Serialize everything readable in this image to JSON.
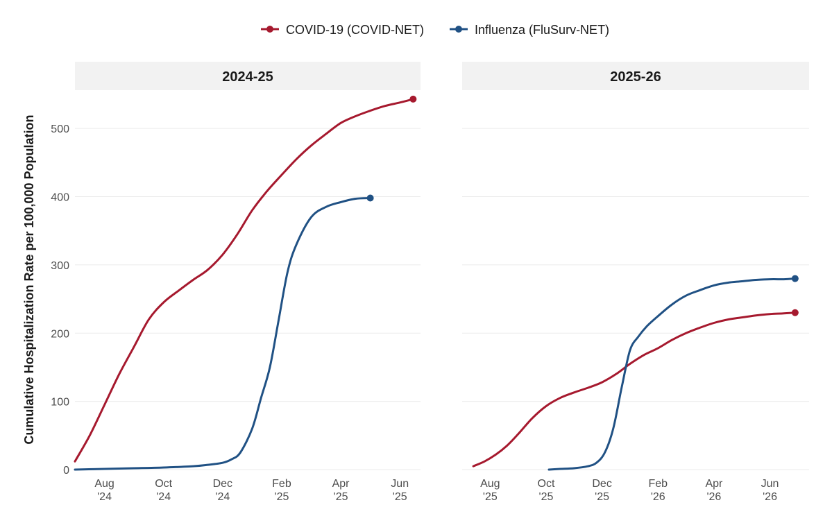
{
  "chart_data": {
    "type": "line",
    "ylabel": "Cumulative Hospitalization Rate per 100,000 Population",
    "yticks": [
      0,
      100,
      200,
      300,
      400,
      500
    ],
    "ylim": [
      0,
      550
    ],
    "legend_position": "top",
    "grid": true,
    "series_legend": [
      {
        "name": "COVID-19 (COVID-NET)",
        "color": "#a6192e"
      },
      {
        "name": "Influenza (FluSurv-NET)",
        "color": "#205184"
      }
    ],
    "panels": [
      {
        "title": "2024-25",
        "xlim": [
          0,
          11.7
        ],
        "x_ticks": [
          {
            "x": 1,
            "l1": "Aug",
            "l2": "'24"
          },
          {
            "x": 3,
            "l1": "Oct",
            "l2": "'24"
          },
          {
            "x": 5,
            "l1": "Dec",
            "l2": "'24"
          },
          {
            "x": 7,
            "l1": "Feb",
            "l2": "'25"
          },
          {
            "x": 9,
            "l1": "Apr",
            "l2": "'25"
          },
          {
            "x": 11,
            "l1": "Jun",
            "l2": "'25"
          }
        ],
        "series": [
          {
            "name": "COVID-19 (COVID-NET)",
            "color": "#a6192e",
            "x": [
              0,
              0.5,
              1.0,
              1.5,
              2.0,
              2.5,
              3.0,
              3.5,
              4.0,
              4.5,
              5.0,
              5.5,
              6.0,
              6.5,
              7.0,
              7.5,
              8.0,
              8.5,
              9.0,
              9.5,
              10.0,
              10.5,
              11.0,
              11.45
            ],
            "y": [
              12,
              50,
              95,
              140,
              180,
              220,
              245,
              262,
              278,
              293,
              315,
              345,
              380,
              408,
              432,
              455,
              475,
              492,
              508,
              518,
              526,
              533,
              538,
              543
            ]
          },
          {
            "name": "Influenza (FluSurv-NET)",
            "color": "#205184",
            "x": [
              0,
              1.0,
              2.0,
              3.0,
              4.0,
              4.5,
              5.0,
              5.3,
              5.6,
              6.0,
              6.3,
              6.6,
              6.9,
              7.2,
              7.5,
              8.0,
              8.5,
              9.0,
              9.5,
              10.0
            ],
            "y": [
              0,
              1,
              2,
              3,
              5,
              7,
              10,
              15,
              25,
              60,
              105,
              150,
              220,
              290,
              330,
              370,
              385,
              392,
              397,
              398
            ]
          }
        ]
      },
      {
        "title": "2025-26",
        "xlim": [
          0,
          12.4
        ],
        "x_ticks": [
          {
            "x": 1,
            "l1": "Aug",
            "l2": "'25"
          },
          {
            "x": 3,
            "l1": "Oct",
            "l2": "'25"
          },
          {
            "x": 5,
            "l1": "Dec",
            "l2": "'25"
          },
          {
            "x": 7,
            "l1": "Feb",
            "l2": "'26"
          },
          {
            "x": 9,
            "l1": "Apr",
            "l2": "'26"
          },
          {
            "x": 11,
            "l1": "Jun",
            "l2": "'26"
          }
        ],
        "series": [
          {
            "name": "COVID-19 (COVID-NET)",
            "color": "#a6192e",
            "x": [
              0.4,
              0.8,
              1.2,
              1.6,
              2.0,
              2.5,
              3.0,
              3.5,
              4.0,
              4.5,
              5.0,
              5.5,
              6.0,
              6.5,
              7.0,
              7.5,
              8.0,
              8.5,
              9.0,
              9.5,
              10.0,
              10.5,
              11.0,
              11.5,
              11.9
            ],
            "y": [
              5,
              12,
              22,
              35,
              52,
              75,
              93,
              105,
              113,
              120,
              128,
              140,
              155,
              168,
              178,
              190,
              200,
              208,
              215,
              220,
              223,
              226,
              228,
              229,
              230
            ]
          },
          {
            "name": "Influenza (FluSurv-NET)",
            "color": "#205184",
            "x": [
              3.1,
              3.5,
              4.0,
              4.5,
              4.8,
              5.1,
              5.4,
              5.7,
              6.0,
              6.3,
              6.6,
              7.0,
              7.5,
              8.0,
              8.5,
              9.0,
              9.5,
              10.0,
              10.5,
              11.0,
              11.5,
              11.9
            ],
            "y": [
              0,
              1,
              2,
              5,
              10,
              25,
              60,
              120,
              175,
              195,
              210,
              225,
              242,
              255,
              263,
              270,
              274,
              276,
              278,
              279,
              279,
              280
            ]
          }
        ]
      }
    ]
  }
}
